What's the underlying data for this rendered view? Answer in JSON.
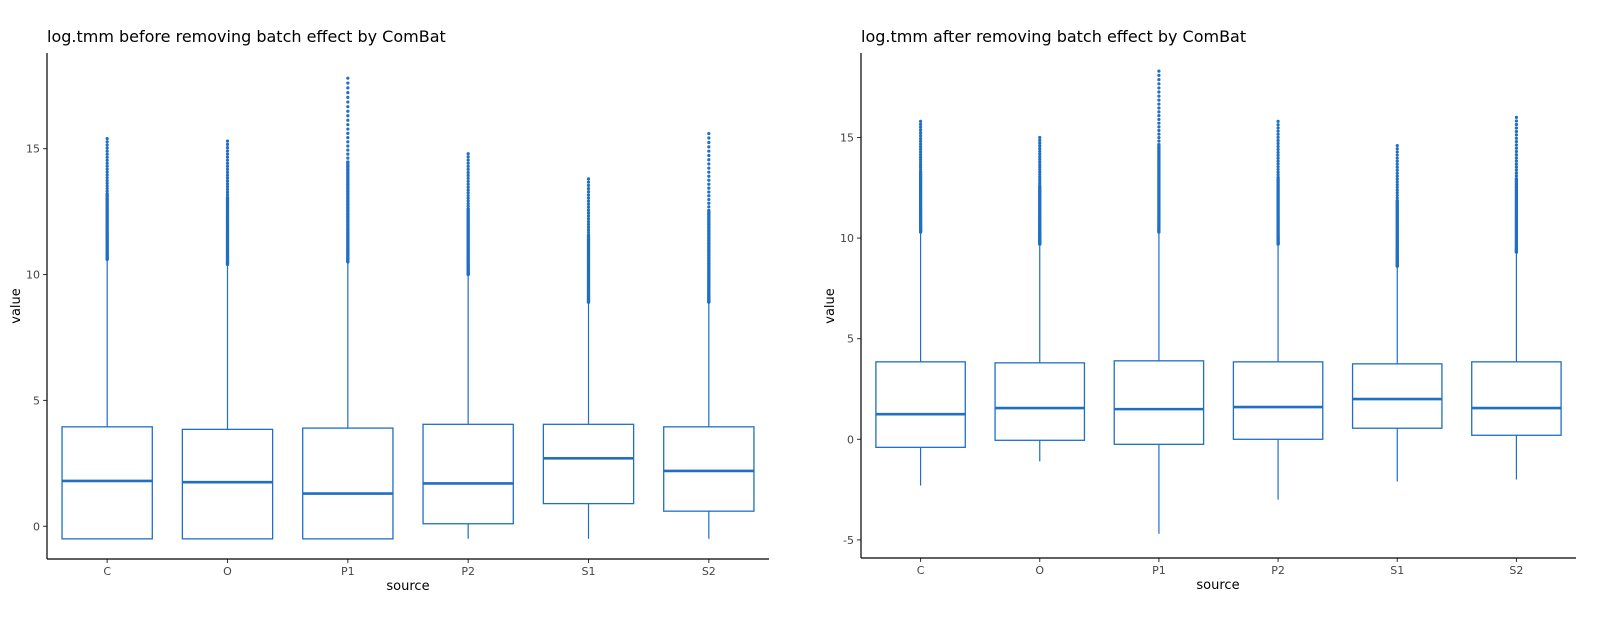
{
  "chart_data": [
    {
      "type": "box",
      "title": "log.tmm before removing batch effect by ComBat",
      "xlabel": "source",
      "ylabel": "value",
      "categories": [
        "C",
        "O",
        "P1",
        "P2",
        "S1",
        "S2"
      ],
      "yticks": [
        0,
        5,
        10,
        15
      ],
      "ylim": [
        -1.3,
        18.8
      ],
      "color": "#1f6fc5",
      "boxes": [
        {
          "category": "C",
          "lower_whisker": -0.5,
          "q1": -0.5,
          "median": 1.8,
          "q3": 3.95,
          "upper_whisker": 10.6,
          "outlier_max": 15.4
        },
        {
          "category": "O",
          "lower_whisker": -0.5,
          "q1": -0.5,
          "median": 1.75,
          "q3": 3.85,
          "upper_whisker": 10.4,
          "outlier_max": 15.3
        },
        {
          "category": "P1",
          "lower_whisker": -0.5,
          "q1": -0.5,
          "median": 1.3,
          "q3": 3.9,
          "upper_whisker": 10.5,
          "outlier_max": 17.8
        },
        {
          "category": "P2",
          "lower_whisker": -0.5,
          "q1": 0.1,
          "median": 1.7,
          "q3": 4.05,
          "upper_whisker": 10.0,
          "outlier_max": 14.8
        },
        {
          "category": "S1",
          "lower_whisker": -0.5,
          "q1": 0.9,
          "median": 2.7,
          "q3": 4.05,
          "upper_whisker": 8.9,
          "outlier_max": 13.8
        },
        {
          "category": "S2",
          "lower_whisker": -0.5,
          "q1": 0.6,
          "median": 2.2,
          "q3": 3.95,
          "upper_whisker": 8.9,
          "outlier_max": 15.6
        }
      ]
    },
    {
      "type": "box",
      "title": "log.tmm after removing batch effect by ComBat",
      "xlabel": "source",
      "ylabel": "value",
      "categories": [
        "C",
        "O",
        "P1",
        "P2",
        "S1",
        "S2"
      ],
      "yticks": [
        -5,
        0,
        5,
        10,
        15
      ],
      "ylim": [
        -5.9,
        19.2
      ],
      "color": "#1f6fc5",
      "boxes": [
        {
          "category": "C",
          "lower_whisker": -2.3,
          "q1": -0.4,
          "median": 1.25,
          "q3": 3.85,
          "upper_whisker": 10.3,
          "outlier_max": 15.8
        },
        {
          "category": "O",
          "lower_whisker": -1.1,
          "q1": -0.05,
          "median": 1.55,
          "q3": 3.8,
          "upper_whisker": 9.7,
          "outlier_max": 15.0
        },
        {
          "category": "P1",
          "lower_whisker": -4.7,
          "q1": -0.25,
          "median": 1.5,
          "q3": 3.9,
          "upper_whisker": 10.3,
          "outlier_max": 18.3
        },
        {
          "category": "P2",
          "lower_whisker": -3.0,
          "q1": 0.0,
          "median": 1.6,
          "q3": 3.85,
          "upper_whisker": 9.7,
          "outlier_max": 15.8
        },
        {
          "category": "S1",
          "lower_whisker": -2.1,
          "q1": 0.55,
          "median": 2.0,
          "q3": 3.75,
          "upper_whisker": 8.6,
          "outlier_max": 14.6
        },
        {
          "category": "S2",
          "lower_whisker": -2.0,
          "q1": 0.2,
          "median": 1.55,
          "q3": 3.85,
          "upper_whisker": 9.3,
          "outlier_max": 16.0
        }
      ]
    }
  ]
}
